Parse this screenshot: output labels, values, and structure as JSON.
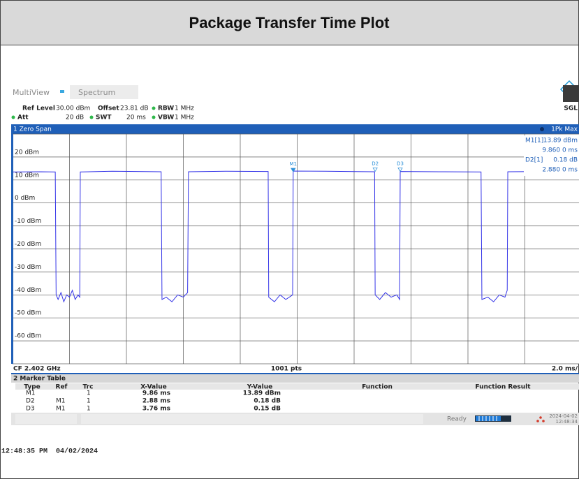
{
  "title": "Package Transfer Time Plot",
  "tabs": [
    "MultiView",
    "Spectrum"
  ],
  "settings": {
    "ref_level_label": "Ref Level",
    "ref_level": "30.00 dBm",
    "offset_label": "Offset",
    "offset": "23.81 dB",
    "rbw_label": "RBW",
    "rbw": "1 MHz",
    "att_label": "Att",
    "att": "20 dB",
    "swt_label": "SWT",
    "swt": "20 ms",
    "vbw_label": "VBW",
    "vbw": "1 MHz",
    "mode": "SGL"
  },
  "window": {
    "name": "1 Zero Span",
    "trace_mode": "1Pk Max"
  },
  "marker_info": [
    [
      "M1[1]",
      "13.89 dBm",
      "9.860 0 ms"
    ],
    [
      "D2[1]",
      "0.18 dB",
      "2.880 0 ms"
    ]
  ],
  "chart_data": {
    "type": "line",
    "color": "#3535e8",
    "x": [
      0,
      1.0,
      1.5,
      1.53,
      1.6,
      1.7,
      1.8,
      1.9,
      2.0,
      2.1,
      2.2,
      2.3,
      2.36,
      2.38,
      3.5,
      5.22,
      5.25,
      5.4,
      5.6,
      5.8,
      6.0,
      6.15,
      6.18,
      7.5,
      8.98,
      9.0,
      9.2,
      9.4,
      9.6,
      9.84,
      9.86,
      11,
      12.72,
      12.74,
      12.9,
      13.1,
      13.3,
      13.5,
      13.6,
      13.62,
      15,
      16.46,
      16.49,
      16.7,
      16.9,
      17.1,
      17.3,
      17.38,
      17.4,
      19,
      20
    ],
    "values": [
      13.5,
      13.6,
      13.5,
      -40,
      -42,
      -39,
      -43,
      -40,
      -41,
      -38,
      -42,
      -40,
      -41,
      13.5,
      13.8,
      13.6,
      -42,
      -41,
      -43,
      -40,
      -41,
      -39,
      13.6,
      13.8,
      13.7,
      -41,
      -43,
      -40,
      -42,
      -40,
      13.89,
      13.8,
      13.6,
      -40,
      -42,
      -39,
      -41,
      -40,
      -42,
      13.7,
      13.6,
      13.5,
      -42,
      -41,
      -43,
      -40,
      -41,
      -38,
      13.6,
      13.7,
      13.6
    ],
    "xlim": [
      0,
      20
    ],
    "ylim": [
      -70,
      30
    ],
    "xticks": [
      0,
      2,
      4,
      6,
      8,
      10,
      12,
      14,
      16,
      18,
      20
    ],
    "yticks": [
      {
        "value": 20,
        "label": "20 dBm"
      },
      {
        "value": 10,
        "label": "10 dBm"
      },
      {
        "value": 0,
        "label": "0 dBm"
      },
      {
        "value": -10,
        "label": "-10 dBm"
      },
      {
        "value": -20,
        "label": "-20 dBm"
      },
      {
        "value": -30,
        "label": "-30 dBm"
      },
      {
        "value": -40,
        "label": "-40 dBm"
      },
      {
        "value": -50,
        "label": "-50 dBm"
      },
      {
        "value": -60,
        "label": "-60 dBm"
      }
    ],
    "grid": true,
    "markers": [
      {
        "label": "M1",
        "x": 9.86,
        "y": 13.89
      },
      {
        "label": "D2",
        "x": 12.74,
        "y": 14.07
      },
      {
        "label": "D3",
        "x": 13.62,
        "y": 14.04
      }
    ],
    "footer": {
      "center_frequency": "CF 2.402 GHz",
      "points": "1001 pts",
      "scale": "2.0 ms/"
    }
  },
  "marker_table": {
    "title": "2 Marker Table",
    "columns": [
      "Type",
      "Ref",
      "Trc",
      "X-Value",
      "Y-Value",
      "Function",
      "Function Result"
    ],
    "rows": [
      {
        "type": "M1",
        "trc": "1",
        "x_value": "9.86 ms",
        "y_value": "13.89 dBm"
      },
      {
        "type": "D2",
        "ref": "M1",
        "trc": "1",
        "x_value": "2.88 ms",
        "y_value": "0.18 dB"
      },
      {
        "type": "D3",
        "ref": "M1",
        "trc": "1",
        "x_value": "3.76 ms",
        "y_value": "0.15 dB"
      }
    ]
  },
  "status": {
    "state": "Ready",
    "date": "2024-04-02",
    "time": "12:48:34"
  },
  "timestamp": "12:48:35 PM  04/02/2024"
}
